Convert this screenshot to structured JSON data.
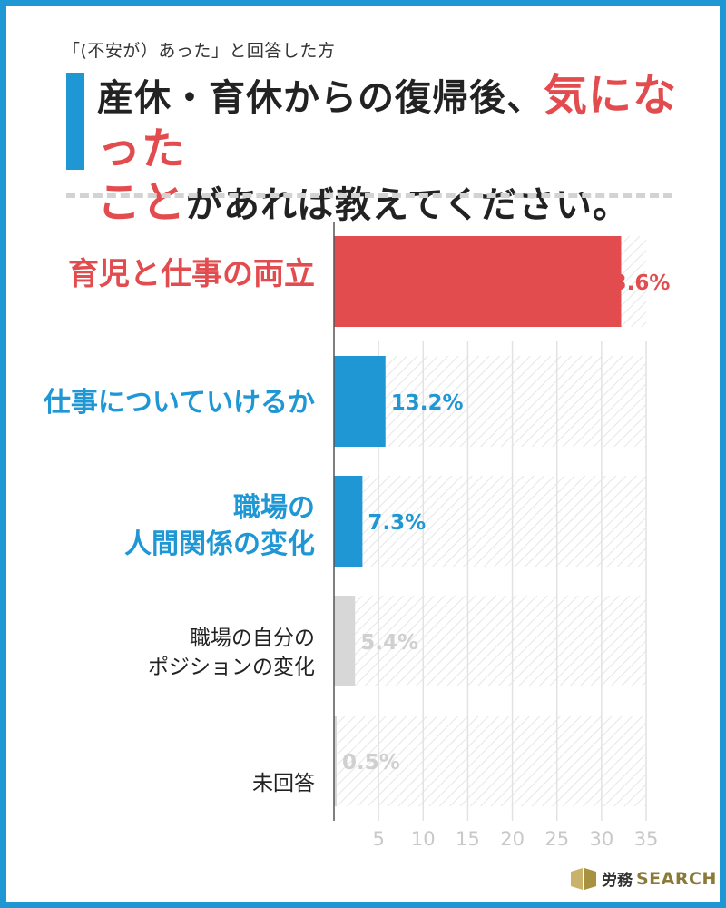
{
  "header": {
    "subtitle": "「(不安が）あった」と回答した方",
    "title_part1": "産休・育休からの復帰後、",
    "title_red1": "気になった",
    "title_red2": "こと",
    "title_part2": "があれば教えてください。"
  },
  "chart_data": {
    "type": "bar",
    "orientation": "horizontal",
    "categories": [
      "育児と仕事の両立",
      "仕事についていけるか",
      "職場の人間関係の変化",
      "職場の自分のポジションの変化",
      "未回答"
    ],
    "category_lines": [
      [
        "育児と仕事の両立"
      ],
      [
        "仕事についていけるか"
      ],
      [
        "職場の",
        "人間関係の変化"
      ],
      [
        "職場の自分の",
        "ポジションの変化"
      ],
      [
        "未回答"
      ]
    ],
    "values": [
      73.6,
      13.2,
      7.3,
      5.4,
      0.5
    ],
    "value_labels": [
      "73.6%",
      "13.2%",
      "7.3%",
      "5.4%",
      "0.5%"
    ],
    "colors": [
      "#e24c4f",
      "#1f97d4",
      "#1f97d4",
      "#d7d7d7",
      "#d7d7d7"
    ],
    "label_colors": [
      "#e24c4f",
      "#1f97d4",
      "#1f97d4",
      "#d0d0d0",
      "#d0d0d0"
    ],
    "x_ticks": [
      "5",
      "10",
      "15",
      "20",
      "25",
      "30",
      "35"
    ],
    "xlim": [
      0,
      80
    ],
    "grid": true
  },
  "logo": {
    "jp": "労務",
    "en": "SEARCH"
  }
}
